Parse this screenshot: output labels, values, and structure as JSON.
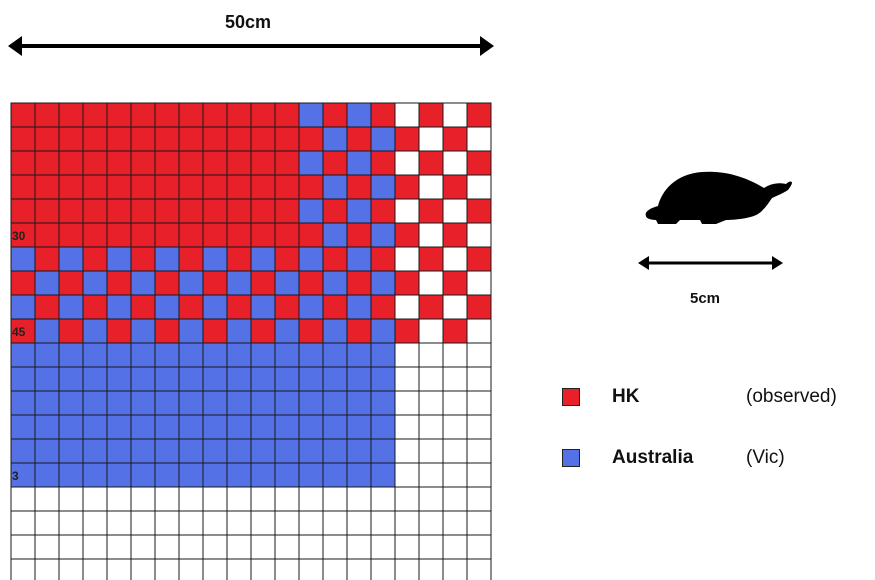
{
  "top_measure": {
    "label": "50cm"
  },
  "turtle_measure": {
    "label": "5cm"
  },
  "turtle_icon": "turtle-silhouette-icon",
  "colors": {
    "hk": "#e8202a",
    "australia": "#5472e6",
    "empty": "#ffffff",
    "grid_line": "#1a1a1a"
  },
  "row_labels": [
    {
      "row": 5,
      "text": "30"
    },
    {
      "row": 9,
      "text": "45"
    },
    {
      "row": 15,
      "text": "3"
    }
  ],
  "legend": [
    {
      "key": "hk",
      "name": "HK",
      "note": "(observed)"
    },
    {
      "key": "australia",
      "name": "Australia",
      "note": "(Vic)"
    }
  ],
  "grid": {
    "columns": 20,
    "rows": 20,
    "cells": [
      "RRRRRRRRRRRRBRBRWRWR",
      "RRRRRRRRRRRRRBRBRWRW",
      "RRRRRRRRRRRRBRBRWRWR",
      "RRRRRRRRRRRRRBRBRWRW",
      "RRRRRRRRRRRRBRBRWRWR",
      "RRRRRRRRRRRRRBRBRWRW",
      "BRBRBRBRBRBRBRBRWRWR",
      "RBRBRBRBRBRBRBRBRWRW",
      "BRBRBRBRBRBRBRBRWRWR",
      "RBRBRBRBRBRBRBRBRWRW",
      "BBBBBBBBBBBBBBBBWWWW",
      "BBBBBBBBBBBBBBBBWWWW",
      "BBBBBBBBBBBBBBBBWWWW",
      "BBBBBBBBBBBBBBBBWWWW",
      "BBBBBBBBBBBBBBBBWWWW",
      "BBBBBBBBBBBBBBBBWWWW",
      "WWWWWWWWWWWWWWWWWWWW",
      "WWWWWWWWWWWWWWWWWWWW",
      "WWWWWWWWWWWWWWWWWWWW",
      "WWWWWWWWWWWWWWWWWWWW"
    ]
  }
}
